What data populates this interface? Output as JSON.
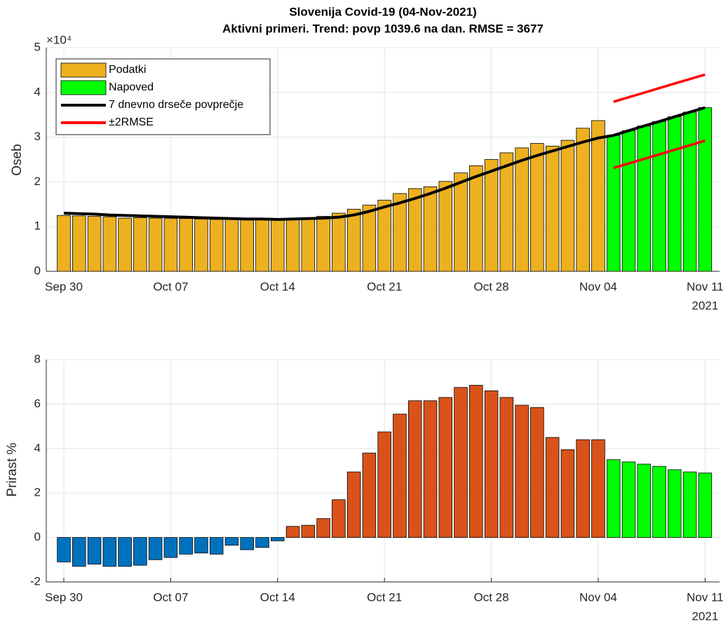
{
  "chart_data": [
    {
      "type": "bar",
      "title": "Slovenija Covid-19 (04-Nov-2021)",
      "subtitle": "Aktivni primeri. Trend: povp 1039.6 na dan. RMSE = 3677",
      "y_label": "Oseb",
      "y_multiplier": "×10⁴",
      "x_year": "2021",
      "categories": [
        "Sep 30",
        null,
        null,
        null,
        null,
        null,
        null,
        "Oct 07",
        null,
        null,
        null,
        null,
        null,
        null,
        "Oct 14",
        null,
        null,
        null,
        null,
        null,
        null,
        "Oct 21",
        null,
        null,
        null,
        null,
        null,
        null,
        "Oct 28",
        null,
        null,
        null,
        null,
        null,
        null,
        "Nov 04",
        null,
        null,
        null,
        null,
        null,
        null,
        "Nov 11"
      ],
      "ylim": [
        0,
        50000
      ],
      "yticks": [
        {
          "value": 0,
          "label": "0"
        },
        {
          "value": 10000,
          "label": "1"
        },
        {
          "value": 20000,
          "label": "2"
        },
        {
          "value": 30000,
          "label": "3"
        },
        {
          "value": 40000,
          "label": "4"
        },
        {
          "value": 50000,
          "label": "5"
        }
      ],
      "grid": true,
      "legend": "northwest",
      "series": [
        {
          "name": "Podatki",
          "type": "bar",
          "color": "#EDB120",
          "values": [
            12500,
            12400,
            12300,
            12200,
            11900,
            12000,
            11900,
            11800,
            11800,
            11700,
            11600,
            11700,
            11600,
            11700,
            11700,
            11800,
            12000,
            12300,
            13000,
            13900,
            14800,
            15900,
            17400,
            18500,
            18900,
            20100,
            22000,
            23600,
            25000,
            26500,
            27600,
            28600,
            28000,
            29300,
            32000,
            33700,
            null,
            null,
            null,
            null,
            null,
            null,
            null
          ]
        },
        {
          "name": "Napoved",
          "type": "bar",
          "color": "#00FF00",
          "values": [
            null,
            null,
            null,
            null,
            null,
            null,
            null,
            null,
            null,
            null,
            null,
            null,
            null,
            null,
            null,
            null,
            null,
            null,
            null,
            null,
            null,
            null,
            null,
            null,
            null,
            null,
            null,
            null,
            null,
            null,
            null,
            null,
            null,
            null,
            null,
            null,
            30400,
            31450,
            32500,
            33500,
            34550,
            35600,
            36600
          ]
        },
        {
          "name": "7 dnevno drseče povprečje",
          "type": "line",
          "color": "#000000",
          "values": [
            13000,
            12900,
            12800,
            12600,
            12500,
            12400,
            12300,
            12200,
            12100,
            12000,
            11900,
            11800,
            11700,
            11700,
            11600,
            11700,
            11800,
            11900,
            12100,
            12600,
            13400,
            14400,
            15300,
            16300,
            17400,
            18600,
            19900,
            21200,
            22400,
            23600,
            24800,
            25900,
            26900,
            27900,
            28900,
            29800,
            30400,
            31450,
            32500,
            33500,
            34550,
            35600,
            36600
          ]
        },
        {
          "name": "±2RMSE",
          "type": "band",
          "color": "#FF0000",
          "upper": [
            null,
            null,
            null,
            null,
            null,
            null,
            null,
            null,
            null,
            null,
            null,
            null,
            null,
            null,
            null,
            null,
            null,
            null,
            null,
            null,
            null,
            null,
            null,
            null,
            null,
            null,
            null,
            null,
            null,
            null,
            null,
            null,
            null,
            null,
            null,
            null,
            37900,
            38920,
            39930,
            40950,
            41970,
            42980,
            44000
          ],
          "lower": [
            null,
            null,
            null,
            null,
            null,
            null,
            null,
            null,
            null,
            null,
            null,
            null,
            null,
            null,
            null,
            null,
            null,
            null,
            null,
            null,
            null,
            null,
            null,
            null,
            null,
            null,
            null,
            null,
            null,
            null,
            null,
            null,
            null,
            null,
            null,
            null,
            23100,
            24120,
            25130,
            26150,
            27170,
            28180,
            29200
          ]
        }
      ]
    },
    {
      "type": "bar",
      "y_label": "Prirast %",
      "x_year": "2021",
      "categories": [
        "Sep 30",
        null,
        null,
        null,
        null,
        null,
        null,
        "Oct 07",
        null,
        null,
        null,
        null,
        null,
        null,
        "Oct 14",
        null,
        null,
        null,
        null,
        null,
        null,
        "Oct 21",
        null,
        null,
        null,
        null,
        null,
        null,
        "Oct 28",
        null,
        null,
        null,
        null,
        null,
        null,
        "Nov 04",
        null,
        null,
        null,
        null,
        null,
        null,
        "Nov 11"
      ],
      "ylim": [
        -2,
        8
      ],
      "yticks": [
        -2,
        0,
        2,
        4,
        6,
        8
      ],
      "grid": true,
      "series": [
        {
          "type": "bar",
          "color": "#0072BD",
          "values": [
            -1.1,
            -1.3,
            -1.2,
            -1.3,
            -1.3,
            -1.25,
            -1.0,
            -0.9,
            -0.75,
            -0.7,
            -0.75,
            -0.35,
            -0.55,
            -0.45,
            -0.15,
            null,
            null,
            null,
            null,
            null,
            null,
            null,
            null,
            null,
            null,
            null,
            null,
            null,
            null,
            null,
            null,
            null,
            null,
            null,
            null,
            null,
            null,
            null,
            null,
            null,
            null,
            null,
            null
          ]
        },
        {
          "type": "bar",
          "color": "#D95319",
          "values": [
            null,
            null,
            null,
            null,
            null,
            null,
            null,
            null,
            null,
            null,
            null,
            null,
            null,
            null,
            null,
            0.5,
            0.55,
            0.85,
            1.7,
            2.95,
            3.8,
            4.75,
            5.55,
            6.15,
            6.15,
            6.3,
            6.75,
            6.85,
            6.6,
            6.3,
            5.95,
            5.85,
            4.5,
            3.95,
            4.4,
            4.4,
            null,
            null,
            null,
            null,
            null,
            null,
            null
          ]
        },
        {
          "type": "bar",
          "color": "#00FF00",
          "values": [
            null,
            null,
            null,
            null,
            null,
            null,
            null,
            null,
            null,
            null,
            null,
            null,
            null,
            null,
            null,
            null,
            null,
            null,
            null,
            null,
            null,
            null,
            null,
            null,
            null,
            null,
            null,
            null,
            null,
            null,
            null,
            null,
            null,
            null,
            null,
            null,
            3.5,
            3.4,
            3.3,
            3.2,
            3.05,
            2.95,
            2.9
          ]
        }
      ]
    }
  ]
}
